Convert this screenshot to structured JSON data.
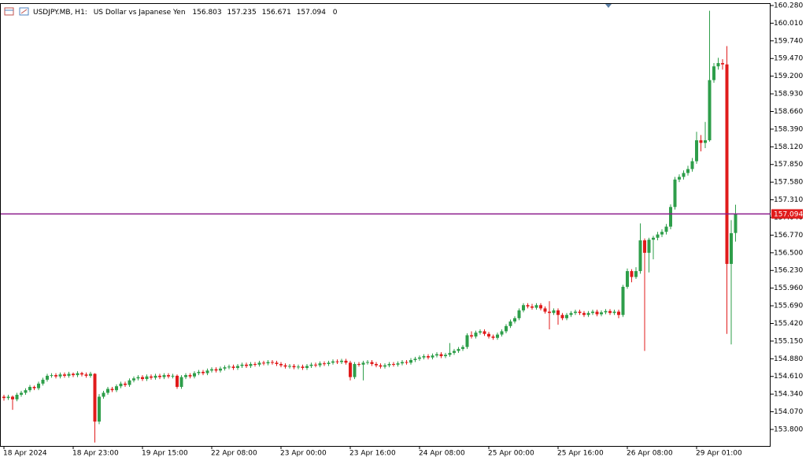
{
  "header": {
    "symbol": "USDJPY.MB, H1:",
    "description": "US Dollar vs Japanese Yen",
    "tail": 0
  },
  "chart_data": {
    "type": "candlestick",
    "up_color": "#2e9e4a",
    "down_color": "#e01b1b",
    "price_line_color": "#8b1a8b",
    "ylim": [
      153.547,
      160.28
    ],
    "yticks": [
      {
        "value": 153.8,
        "label": "153.800"
      },
      {
        "value": 154.07,
        "label": "154.070"
      },
      {
        "value": 154.34,
        "label": "154.340"
      },
      {
        "value": 154.61,
        "label": "154.610"
      },
      {
        "value": 154.88,
        "label": "154.880"
      },
      {
        "value": 155.15,
        "label": "155.150"
      },
      {
        "value": 155.42,
        "label": "155.420"
      },
      {
        "value": 155.69,
        "label": "155.690"
      },
      {
        "value": 155.96,
        "label": "155.960"
      },
      {
        "value": 156.23,
        "label": "156.230"
      },
      {
        "value": 156.5,
        "label": "156.500"
      },
      {
        "value": 156.77,
        "label": "156.770"
      },
      {
        "value": 157.04,
        "label": "157.040"
      },
      {
        "value": 157.31,
        "label": "157.310"
      },
      {
        "value": 157.58,
        "label": "157.580"
      },
      {
        "value": 157.85,
        "label": "157.850"
      },
      {
        "value": 158.12,
        "label": "158.120"
      },
      {
        "value": 158.39,
        "label": "158.390"
      },
      {
        "value": 158.66,
        "label": "158.660"
      },
      {
        "value": 158.93,
        "label": "158.930"
      },
      {
        "value": 159.2,
        "label": "159.200"
      },
      {
        "value": 159.47,
        "label": "159.470"
      },
      {
        "value": 159.74,
        "label": "159.740"
      },
      {
        "value": 160.01,
        "label": "160.010"
      },
      {
        "value": 160.28,
        "label": "160.280"
      }
    ],
    "current_price": 157.094,
    "categories": [
      "18 Apr 2024",
      null,
      null,
      null,
      null,
      null,
      null,
      null,
      null,
      null,
      null,
      null,
      null,
      null,
      null,
      null,
      "18 Apr 23:00",
      null,
      null,
      null,
      null,
      null,
      null,
      null,
      null,
      null,
      null,
      null,
      null,
      null,
      null,
      null,
      "19 Apr 15:00",
      null,
      null,
      null,
      null,
      null,
      null,
      null,
      null,
      null,
      null,
      null,
      null,
      null,
      null,
      null,
      "22 Apr 08:00",
      null,
      null,
      null,
      null,
      null,
      null,
      null,
      null,
      null,
      null,
      null,
      null,
      null,
      null,
      null,
      "23 Apr 00:00",
      null,
      null,
      null,
      null,
      null,
      null,
      null,
      null,
      null,
      null,
      null,
      null,
      null,
      null,
      null,
      "23 Apr 16:00",
      null,
      null,
      null,
      null,
      null,
      null,
      null,
      null,
      null,
      null,
      null,
      null,
      null,
      null,
      null,
      "24 Apr 08:00",
      null,
      null,
      null,
      null,
      null,
      null,
      null,
      null,
      null,
      null,
      null,
      null,
      null,
      null,
      null,
      "25 Apr 00:00",
      null,
      null,
      null,
      null,
      null,
      null,
      null,
      null,
      null,
      null,
      null,
      null,
      null,
      null,
      null,
      "25 Apr 16:00",
      null,
      null,
      null,
      null,
      null,
      null,
      null,
      null,
      null,
      null,
      null,
      null,
      null,
      null,
      null,
      "26 Apr 08:00",
      null,
      null,
      null,
      null,
      null,
      null,
      null,
      null,
      null,
      null,
      null,
      null,
      null,
      null,
      null,
      "29 Apr 01:00",
      null,
      null,
      null,
      null,
      null,
      null,
      null,
      null,
      null
    ],
    "candles": [
      [
        154.3,
        154.33,
        154.24,
        154.28
      ],
      [
        154.28,
        154.33,
        154.25,
        154.3
      ],
      [
        154.3,
        154.32,
        154.1,
        154.26
      ],
      [
        154.26,
        154.36,
        154.23,
        154.33
      ],
      [
        154.33,
        154.39,
        154.3,
        154.36
      ],
      [
        154.36,
        154.43,
        154.33,
        154.4
      ],
      [
        154.4,
        154.48,
        154.37,
        154.45
      ],
      [
        154.45,
        154.47,
        154.4,
        154.43
      ],
      [
        154.43,
        154.53,
        154.4,
        154.5
      ],
      [
        154.5,
        154.59,
        154.47,
        154.56
      ],
      [
        154.56,
        154.65,
        154.53,
        154.62
      ],
      [
        154.62,
        154.66,
        154.59,
        154.63
      ],
      [
        154.63,
        154.66,
        154.58,
        154.61
      ],
      [
        154.61,
        154.67,
        154.58,
        154.64
      ],
      [
        154.64,
        154.67,
        154.59,
        154.62
      ],
      [
        154.62,
        154.68,
        154.59,
        154.65
      ],
      [
        154.65,
        154.67,
        154.6,
        154.63
      ],
      [
        154.63,
        154.69,
        154.6,
        154.66
      ],
      [
        154.66,
        154.68,
        154.61,
        154.64
      ],
      [
        154.64,
        154.67,
        154.59,
        154.62
      ],
      [
        154.62,
        154.68,
        154.59,
        154.65
      ],
      [
        154.65,
        154.66,
        153.6,
        153.92
      ],
      [
        153.92,
        154.34,
        153.88,
        154.3
      ],
      [
        154.3,
        154.39,
        154.27,
        154.36
      ],
      [
        154.36,
        154.45,
        154.33,
        154.42
      ],
      [
        154.42,
        154.45,
        154.37,
        154.4
      ],
      [
        154.4,
        154.49,
        154.37,
        154.46
      ],
      [
        154.46,
        154.53,
        154.43,
        154.5
      ],
      [
        154.5,
        154.53,
        154.45,
        154.48
      ],
      [
        154.48,
        154.58,
        154.45,
        154.55
      ],
      [
        154.55,
        154.61,
        154.52,
        154.58
      ],
      [
        154.58,
        154.63,
        154.55,
        154.6
      ],
      [
        154.6,
        154.63,
        154.54,
        154.57
      ],
      [
        154.57,
        154.64,
        154.54,
        154.61
      ],
      [
        154.61,
        154.64,
        154.56,
        154.59
      ],
      [
        154.59,
        154.65,
        154.56,
        154.62
      ],
      [
        154.62,
        154.65,
        154.57,
        154.6
      ],
      [
        154.6,
        154.66,
        154.57,
        154.63
      ],
      [
        154.63,
        154.66,
        154.58,
        154.61
      ],
      [
        154.61,
        154.65,
        154.58,
        154.62
      ],
      [
        154.62,
        154.64,
        154.42,
        154.45
      ],
      [
        154.45,
        154.63,
        154.42,
        154.6
      ],
      [
        154.6,
        154.66,
        154.57,
        154.63
      ],
      [
        154.63,
        154.66,
        154.58,
        154.61
      ],
      [
        154.61,
        154.69,
        154.58,
        154.66
      ],
      [
        154.66,
        154.71,
        154.63,
        154.68
      ],
      [
        154.68,
        154.71,
        154.63,
        154.66
      ],
      [
        154.66,
        154.73,
        154.63,
        154.7
      ],
      [
        154.7,
        154.75,
        154.67,
        154.72
      ],
      [
        154.72,
        154.75,
        154.67,
        154.7
      ],
      [
        154.7,
        154.76,
        154.67,
        154.73
      ],
      [
        154.73,
        154.78,
        154.7,
        154.75
      ],
      [
        154.75,
        154.79,
        154.72,
        154.76
      ],
      [
        154.76,
        154.79,
        154.71,
        154.74
      ],
      [
        154.74,
        154.8,
        154.71,
        154.77
      ],
      [
        154.77,
        154.82,
        154.74,
        154.79
      ],
      [
        154.79,
        154.82,
        154.74,
        154.77
      ],
      [
        154.77,
        154.83,
        154.74,
        154.8
      ],
      [
        154.8,
        154.83,
        154.76,
        154.79
      ],
      [
        154.79,
        154.85,
        154.76,
        154.82
      ],
      [
        154.82,
        154.85,
        154.78,
        154.81
      ],
      [
        154.81,
        154.86,
        154.78,
        154.83
      ],
      [
        154.83,
        154.86,
        154.79,
        154.82
      ],
      [
        154.82,
        154.85,
        154.77,
        154.8
      ],
      [
        154.8,
        154.83,
        154.75,
        154.78
      ],
      [
        154.78,
        154.81,
        154.73,
        154.76
      ],
      [
        154.76,
        154.8,
        154.73,
        154.77
      ],
      [
        154.77,
        154.8,
        154.72,
        154.75
      ],
      [
        154.75,
        154.79,
        154.72,
        154.76
      ],
      [
        154.76,
        154.79,
        154.71,
        154.74
      ],
      [
        154.74,
        154.8,
        154.71,
        154.77
      ],
      [
        154.77,
        154.82,
        154.74,
        154.79
      ],
      [
        154.79,
        154.82,
        154.75,
        154.78
      ],
      [
        154.78,
        154.84,
        154.75,
        154.81
      ],
      [
        154.81,
        154.84,
        154.77,
        154.8
      ],
      [
        154.8,
        154.85,
        154.77,
        154.82
      ],
      [
        154.82,
        154.87,
        154.79,
        154.84
      ],
      [
        154.84,
        154.87,
        154.8,
        154.83
      ],
      [
        154.83,
        154.88,
        154.8,
        154.85
      ],
      [
        154.85,
        154.88,
        154.79,
        154.82
      ],
      [
        154.82,
        154.85,
        154.55,
        154.6
      ],
      [
        154.6,
        154.83,
        154.57,
        154.8
      ],
      [
        154.8,
        154.83,
        154.76,
        154.79
      ],
      [
        154.79,
        154.85,
        154.55,
        154.82
      ],
      [
        154.82,
        154.86,
        154.79,
        154.83
      ],
      [
        154.83,
        154.86,
        154.77,
        154.8
      ],
      [
        154.8,
        154.83,
        154.75,
        154.78
      ],
      [
        154.78,
        154.81,
        154.73,
        154.76
      ],
      [
        154.76,
        154.81,
        154.73,
        154.78
      ],
      [
        154.78,
        154.83,
        154.75,
        154.8
      ],
      [
        154.8,
        154.83,
        154.76,
        154.79
      ],
      [
        154.79,
        154.84,
        154.76,
        154.81
      ],
      [
        154.81,
        154.86,
        154.78,
        154.83
      ],
      [
        154.83,
        154.86,
        154.79,
        154.82
      ],
      [
        154.82,
        154.89,
        154.79,
        154.86
      ],
      [
        154.86,
        154.91,
        154.83,
        154.88
      ],
      [
        154.88,
        154.93,
        154.85,
        154.9
      ],
      [
        154.9,
        154.95,
        154.87,
        154.92
      ],
      [
        154.92,
        154.95,
        154.87,
        154.9
      ],
      [
        154.9,
        154.96,
        154.87,
        154.93
      ],
      [
        154.93,
        154.98,
        154.9,
        154.95
      ],
      [
        154.95,
        154.98,
        154.89,
        154.92
      ],
      [
        154.92,
        154.97,
        154.89,
        154.94
      ],
      [
        154.94,
        155.12,
        154.91,
        154.97
      ],
      [
        154.97,
        155.03,
        154.94,
        155.0
      ],
      [
        155.0,
        155.06,
        154.97,
        155.03
      ],
      [
        155.03,
        155.09,
        155.0,
        155.06
      ],
      [
        155.06,
        155.27,
        155.03,
        155.24
      ],
      [
        155.24,
        155.3,
        155.19,
        155.22
      ],
      [
        155.22,
        155.31,
        155.19,
        155.28
      ],
      [
        155.28,
        155.33,
        155.25,
        155.3
      ],
      [
        155.3,
        155.33,
        155.23,
        155.26
      ],
      [
        155.26,
        155.29,
        155.19,
        155.22
      ],
      [
        155.22,
        155.25,
        155.17,
        155.2
      ],
      [
        155.2,
        155.28,
        155.17,
        155.25
      ],
      [
        155.25,
        155.33,
        155.22,
        155.3
      ],
      [
        155.3,
        155.41,
        155.27,
        155.38
      ],
      [
        155.38,
        155.48,
        155.35,
        155.45
      ],
      [
        155.45,
        155.53,
        155.42,
        155.5
      ],
      [
        155.5,
        155.65,
        155.47,
        155.62
      ],
      [
        155.62,
        155.73,
        155.59,
        155.7
      ],
      [
        155.7,
        155.73,
        155.65,
        155.68
      ],
      [
        155.68,
        155.72,
        155.63,
        155.66
      ],
      [
        155.66,
        155.73,
        155.63,
        155.7
      ],
      [
        155.7,
        155.73,
        155.62,
        155.65
      ],
      [
        155.65,
        155.68,
        155.57,
        155.6
      ],
      [
        155.6,
        155.76,
        155.33,
        155.58
      ],
      [
        155.58,
        155.65,
        155.55,
        155.62
      ],
      [
        155.62,
        155.65,
        155.4,
        155.55
      ],
      [
        155.55,
        155.58,
        155.47,
        155.5
      ],
      [
        155.5,
        155.58,
        155.47,
        155.55
      ],
      [
        155.55,
        155.61,
        155.52,
        155.58
      ],
      [
        155.58,
        155.63,
        155.55,
        155.6
      ],
      [
        155.6,
        155.63,
        155.55,
        155.58
      ],
      [
        155.58,
        155.61,
        155.52,
        155.55
      ],
      [
        155.55,
        155.61,
        155.52,
        155.58
      ],
      [
        155.58,
        155.63,
        155.55,
        155.6
      ],
      [
        155.6,
        155.63,
        155.53,
        155.56
      ],
      [
        155.56,
        155.62,
        155.53,
        155.59
      ],
      [
        155.59,
        155.64,
        155.56,
        155.61
      ],
      [
        155.61,
        155.64,
        155.55,
        155.58
      ],
      [
        155.58,
        155.63,
        155.55,
        155.6
      ],
      [
        155.6,
        155.63,
        155.5,
        155.55
      ],
      [
        155.55,
        156.01,
        155.52,
        155.98
      ],
      [
        155.98,
        156.26,
        155.95,
        156.22
      ],
      [
        156.22,
        156.25,
        156.05,
        156.13
      ],
      [
        156.13,
        156.28,
        156.1,
        156.22
      ],
      [
        156.22,
        156.95,
        156.18,
        156.69
      ],
      [
        156.69,
        156.72,
        155.0,
        156.5
      ],
      [
        156.5,
        156.73,
        156.2,
        156.7
      ],
      [
        156.7,
        156.76,
        156.4,
        156.73
      ],
      [
        156.73,
        156.82,
        156.69,
        156.78
      ],
      [
        156.78,
        156.86,
        156.74,
        156.82
      ],
      [
        156.82,
        156.94,
        156.78,
        156.9
      ],
      [
        156.9,
        157.24,
        156.86,
        157.2
      ],
      [
        157.2,
        157.66,
        157.16,
        157.62
      ],
      [
        157.62,
        157.7,
        157.58,
        157.66
      ],
      [
        157.66,
        157.76,
        157.62,
        157.72
      ],
      [
        157.72,
        157.83,
        157.68,
        157.78
      ],
      [
        157.78,
        157.95,
        157.74,
        157.9
      ],
      [
        157.9,
        158.35,
        157.86,
        158.22
      ],
      [
        158.22,
        158.3,
        158.05,
        158.18
      ],
      [
        158.18,
        158.5,
        158.1,
        158.22
      ],
      [
        158.22,
        160.2,
        158.2,
        159.14
      ],
      [
        159.14,
        159.4,
        159.1,
        159.35
      ],
      [
        159.35,
        159.48,
        159.3,
        159.4
      ],
      [
        159.4,
        159.46,
        159.3,
        159.38
      ],
      [
        159.38,
        159.66,
        155.26,
        156.33
      ],
      [
        156.33,
        157.0,
        155.1,
        156.8
      ],
      [
        156.803,
        157.235,
        156.671,
        157.094
      ]
    ]
  }
}
